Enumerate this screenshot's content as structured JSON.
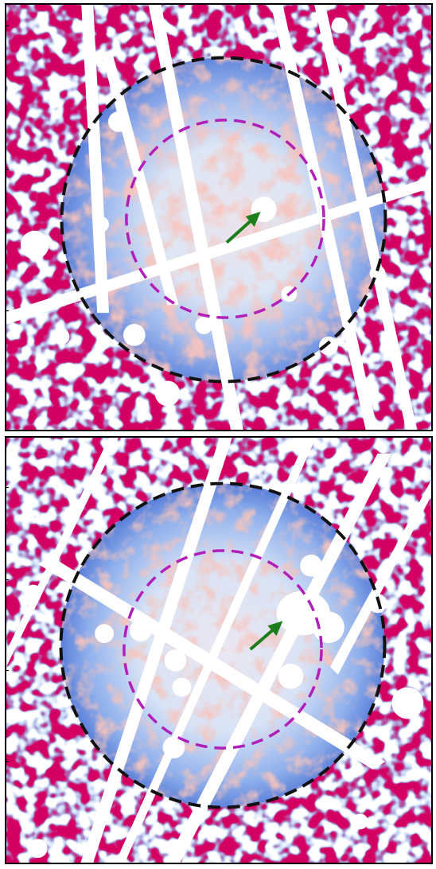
{
  "colors": {
    "background": "#ffffff",
    "noise_red": "#a8001f",
    "noise_outline": "#4f78d6",
    "outer_circle": "#111111",
    "inner_circle": "#b01fb8",
    "arrow": "#1b7d1b",
    "map_light": "#dde6f5",
    "map_warm": "#f3c0aa",
    "map_blue": "#7fa1e6"
  },
  "panels": [
    {
      "name": "top",
      "icons": [
        "outer-circle-dashed",
        "inner-circle-dashed",
        "green-arrow"
      ]
    },
    {
      "name": "bottom",
      "icons": [
        "outer-circle-dashed",
        "inner-circle-dashed",
        "green-arrow"
      ]
    }
  ]
}
